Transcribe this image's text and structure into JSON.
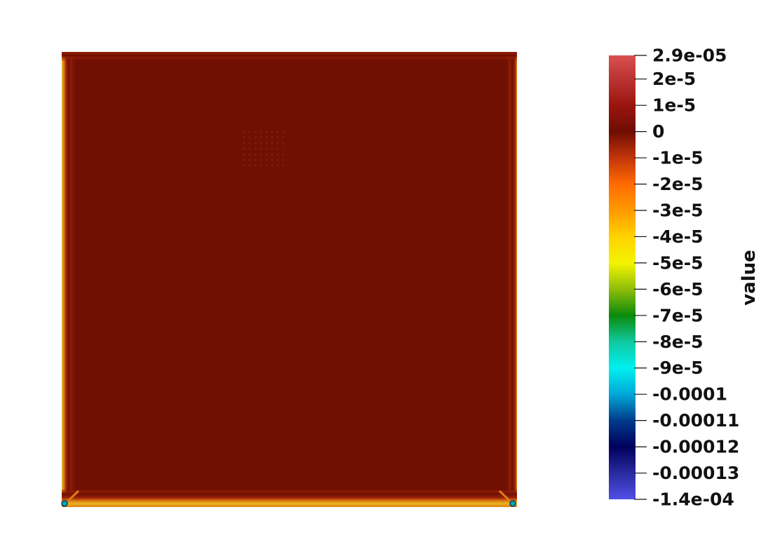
{
  "chart_data": {
    "type": "heatmap",
    "field_name": "value",
    "colorbar": {
      "title": "value",
      "range": [
        -0.00014,
        2.9e-05
      ],
      "ticks": [
        {
          "value": 2.9e-05,
          "label": "2.9e-05"
        },
        {
          "value": 2e-05,
          "label": "2e-5"
        },
        {
          "value": 1e-05,
          "label": "1e-5"
        },
        {
          "value": 0,
          "label": "0"
        },
        {
          "value": -1e-05,
          "label": "-1e-5"
        },
        {
          "value": -2e-05,
          "label": "-2e-5"
        },
        {
          "value": -3e-05,
          "label": "-3e-5"
        },
        {
          "value": -4e-05,
          "label": "-4e-5"
        },
        {
          "value": -5e-05,
          "label": "-5e-5"
        },
        {
          "value": -6e-05,
          "label": "-6e-5"
        },
        {
          "value": -7e-05,
          "label": "-7e-5"
        },
        {
          "value": -8e-05,
          "label": "-8e-5"
        },
        {
          "value": -9e-05,
          "label": "-9e-5"
        },
        {
          "value": -0.0001,
          "label": "-0.0001"
        },
        {
          "value": -0.00011,
          "label": "-0.00011"
        },
        {
          "value": -0.00012,
          "label": "-0.00012"
        },
        {
          "value": -0.00013,
          "label": "-0.00013"
        },
        {
          "value": -0.00014,
          "label": "-1.4e-04"
        }
      ],
      "colormap_stops": [
        {
          "value": 2.9e-05,
          "color": "#d95050"
        },
        {
          "value": 1e-05,
          "color": "#9a1510"
        },
        {
          "value": 0,
          "color": "#6f0d02"
        },
        {
          "value": -1e-05,
          "color": "#c2360a"
        },
        {
          "value": -2e-05,
          "color": "#ff6a00"
        },
        {
          "value": -3e-05,
          "color": "#ff9a00"
        },
        {
          "value": -4e-05,
          "color": "#ffd200"
        },
        {
          "value": -5e-05,
          "color": "#f4f400"
        },
        {
          "value": -6e-05,
          "color": "#8fbe0a"
        },
        {
          "value": -7e-05,
          "color": "#0a8a0a"
        },
        {
          "value": -8e-05,
          "color": "#10c9a0"
        },
        {
          "value": -9e-05,
          "color": "#00f0f0"
        },
        {
          "value": -0.0001,
          "color": "#00a8d8"
        },
        {
          "value": -0.00011,
          "color": "#003c8c"
        },
        {
          "value": -0.00012,
          "color": "#00005c"
        },
        {
          "value": -0.00013,
          "color": "#2a2aa0"
        },
        {
          "value": -0.00014,
          "color": "#4f4fe6"
        }
      ]
    },
    "field": {
      "interior_value": 0,
      "interior_color": "#701002",
      "edge_band_color": "#962006",
      "edge_line_color": "#e07a14",
      "bottom_edge_color": "#e6b820",
      "corner_color": "#00a8a8"
    }
  }
}
